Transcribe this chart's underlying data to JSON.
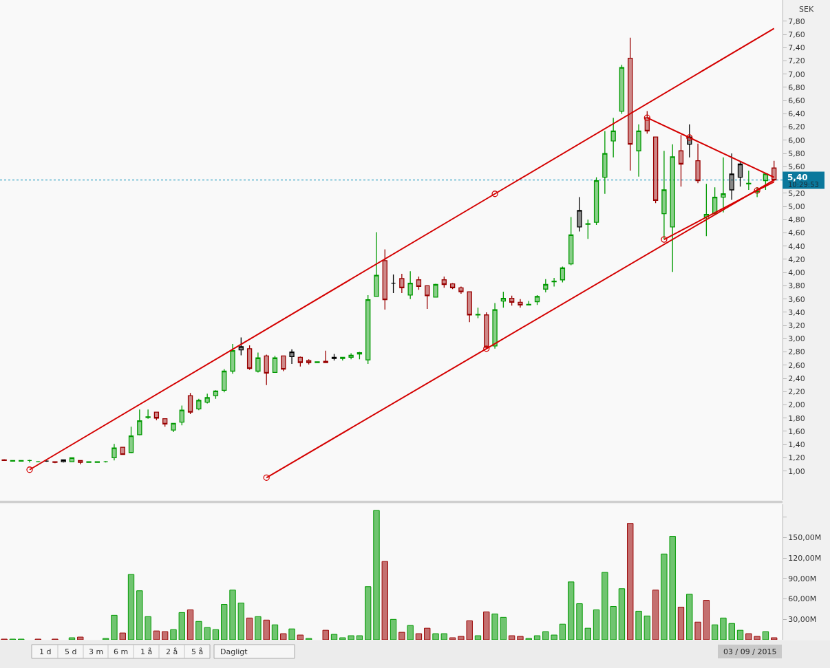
{
  "chart_data": [
    {
      "type": "candlestick",
      "ylabel": "SEK",
      "categories": [
        null,
        null,
        null,
        null,
        null,
        null,
        null,
        null,
        null,
        null,
        null,
        null,
        null,
        null,
        null,
        null,
        null,
        null,
        null,
        null,
        null,
        null,
        null,
        null,
        null,
        null,
        null,
        null,
        null,
        null,
        null,
        null,
        null,
        null,
        null,
        null,
        null,
        null,
        null,
        null,
        null,
        null,
        null,
        null,
        null,
        null,
        null,
        null,
        null,
        null,
        null,
        null,
        null,
        null,
        null,
        null,
        null,
        null,
        null,
        null,
        null,
        null,
        null,
        null,
        null,
        null,
        null,
        null,
        null,
        null,
        null,
        null,
        null,
        null,
        null,
        null,
        null,
        null,
        null,
        null,
        null,
        null,
        null,
        null,
        null,
        null,
        null,
        null,
        null,
        null,
        null,
        null
      ],
      "ohlc": [
        [
          1.17,
          1.18,
          1.16,
          1.16
        ],
        [
          1.15,
          1.16,
          1.15,
          1.16
        ],
        [
          1.15,
          1.16,
          1.15,
          1.16
        ],
        [
          1.16,
          1.17,
          1.13,
          1.16
        ],
        [
          1.14,
          1.15,
          1.14,
          1.14
        ],
        [
          1.15,
          1.16,
          1.14,
          1.15
        ],
        [
          1.14,
          1.14,
          1.12,
          1.13
        ],
        [
          1.14,
          1.17,
          1.13,
          1.17
        ],
        [
          1.14,
          1.2,
          1.14,
          1.2
        ],
        [
          1.16,
          1.16,
          1.1,
          1.13
        ],
        [
          1.13,
          1.14,
          1.13,
          1.14
        ],
        [
          1.13,
          1.14,
          1.13,
          1.14
        ],
        [
          1.14,
          1.15,
          1.13,
          1.14
        ],
        [
          1.2,
          1.41,
          1.16,
          1.35
        ],
        [
          1.36,
          1.36,
          1.25,
          1.25
        ],
        [
          1.28,
          1.67,
          1.27,
          1.53
        ],
        [
          1.55,
          1.93,
          1.54,
          1.76
        ],
        [
          1.81,
          1.93,
          1.79,
          1.82
        ],
        [
          1.89,
          1.89,
          1.77,
          1.8
        ],
        [
          1.79,
          1.79,
          1.67,
          1.71
        ],
        [
          1.62,
          1.72,
          1.59,
          1.72
        ],
        [
          1.74,
          1.99,
          1.69,
          1.92
        ],
        [
          2.14,
          2.18,
          1.86,
          1.89
        ],
        [
          1.94,
          2.09,
          1.92,
          2.07
        ],
        [
          2.04,
          2.17,
          2.02,
          2.11
        ],
        [
          2.14,
          2.22,
          2.09,
          2.21
        ],
        [
          2.22,
          2.54,
          2.19,
          2.51
        ],
        [
          2.51,
          2.92,
          2.47,
          2.82
        ],
        [
          2.83,
          3.02,
          2.75,
          2.88
        ],
        [
          2.85,
          2.9,
          2.53,
          2.55
        ],
        [
          2.51,
          2.79,
          2.49,
          2.71
        ],
        [
          2.74,
          2.76,
          2.3,
          2.48
        ],
        [
          2.49,
          2.74,
          2.49,
          2.71
        ],
        [
          2.74,
          2.74,
          2.51,
          2.54
        ],
        [
          2.73,
          2.84,
          2.62,
          2.8
        ],
        [
          2.72,
          2.73,
          2.58,
          2.64
        ],
        [
          2.67,
          2.69,
          2.61,
          2.64
        ],
        [
          2.64,
          2.65,
          2.64,
          2.65
        ],
        [
          2.66,
          2.82,
          2.64,
          2.64
        ],
        [
          2.7,
          2.77,
          2.67,
          2.72
        ],
        [
          2.7,
          2.72,
          2.67,
          2.72
        ],
        [
          2.72,
          2.78,
          2.69,
          2.75
        ],
        [
          2.77,
          2.8,
          2.69,
          2.79
        ],
        [
          2.68,
          3.66,
          2.62,
          3.59
        ],
        [
          3.64,
          4.61,
          3.64,
          3.96
        ],
        [
          4.18,
          4.35,
          3.44,
          3.59
        ],
        [
          3.84,
          3.97,
          3.69,
          3.84
        ],
        [
          3.91,
          3.98,
          3.69,
          3.77
        ],
        [
          3.66,
          4.02,
          3.6,
          3.84
        ],
        [
          3.89,
          3.94,
          3.74,
          3.79
        ],
        [
          3.8,
          3.8,
          3.45,
          3.65
        ],
        [
          3.63,
          3.83,
          3.63,
          3.82
        ],
        [
          3.89,
          3.94,
          3.77,
          3.82
        ],
        [
          3.83,
          3.84,
          3.75,
          3.77
        ],
        [
          3.77,
          3.79,
          3.68,
          3.71
        ],
        [
          3.71,
          3.71,
          3.25,
          3.36
        ],
        [
          3.36,
          3.47,
          3.31,
          3.37
        ],
        [
          3.36,
          3.4,
          2.86,
          2.87
        ],
        [
          2.89,
          3.54,
          2.85,
          3.44
        ],
        [
          3.57,
          3.71,
          3.47,
          3.61
        ],
        [
          3.61,
          3.65,
          3.5,
          3.55
        ],
        [
          3.55,
          3.6,
          3.47,
          3.51
        ],
        [
          3.51,
          3.57,
          3.51,
          3.52
        ],
        [
          3.56,
          3.66,
          3.51,
          3.64
        ],
        [
          3.75,
          3.9,
          3.7,
          3.82
        ],
        [
          3.86,
          3.92,
          3.79,
          3.87
        ],
        [
          3.89,
          4.09,
          3.85,
          4.07
        ],
        [
          4.13,
          4.84,
          4.11,
          4.57
        ],
        [
          4.69,
          5.14,
          4.62,
          4.94
        ],
        [
          4.73,
          4.8,
          4.51,
          4.74
        ],
        [
          4.76,
          5.44,
          4.72,
          5.39
        ],
        [
          5.44,
          6.14,
          5.19,
          5.8
        ],
        [
          5.99,
          6.34,
          5.74,
          6.14
        ],
        [
          6.44,
          7.14,
          6.4,
          7.1
        ],
        [
          7.24,
          7.55,
          5.54,
          5.94
        ],
        [
          5.84,
          6.24,
          5.45,
          6.14
        ],
        [
          6.34,
          6.44,
          6.1,
          6.14
        ],
        [
          6.05,
          6.05,
          5.05,
          5.09
        ],
        [
          4.89,
          5.84,
          4.5,
          5.25
        ],
        [
          4.69,
          5.94,
          4.01,
          5.75
        ],
        [
          5.84,
          6.08,
          5.3,
          5.64
        ],
        [
          5.94,
          6.24,
          5.74,
          6.05
        ],
        [
          5.69,
          5.95,
          5.35,
          5.39
        ],
        [
          4.84,
          5.34,
          4.55,
          4.88
        ],
        [
          4.89,
          5.29,
          4.87,
          5.14
        ],
        [
          5.14,
          5.74,
          4.91,
          5.19
        ],
        [
          5.25,
          5.8,
          5.1,
          5.49
        ],
        [
          5.44,
          5.67,
          5.3,
          5.64
        ],
        [
          5.34,
          5.54,
          5.25,
          5.35
        ],
        [
          5.22,
          5.29,
          5.14,
          5.23
        ],
        [
          5.39,
          5.5,
          5.25,
          5.49
        ],
        [
          5.58,
          5.69,
          5.38,
          5.4
        ]
      ],
      "colors": [
        "#990000",
        "#009900",
        "#009900",
        "#009900",
        "#009900",
        "#000000",
        "#990000",
        "#000000",
        "#009900",
        "#990000",
        "#009900",
        "#009900",
        "#009900",
        "#009900",
        "#990000",
        "#009900",
        "#009900",
        "#009900",
        "#990000",
        "#990000",
        "#009900",
        "#009900",
        "#990000",
        "#009900",
        "#009900",
        "#009900",
        "#009900",
        "#009900",
        "#000000",
        "#990000",
        "#009900",
        "#990000",
        "#009900",
        "#990000",
        "#000000",
        "#990000",
        "#990000",
        "#009900",
        "#990000",
        "#000000",
        "#009900",
        "#009900",
        "#009900",
        "#009900",
        "#009900",
        "#990000",
        "#000000",
        "#990000",
        "#009900",
        "#990000",
        "#990000",
        "#009900",
        "#990000",
        "#990000",
        "#990000",
        "#990000",
        "#009900",
        "#990000",
        "#009900",
        "#009900",
        "#990000",
        "#990000",
        "#009900",
        "#009900",
        "#009900",
        "#009900",
        "#009900",
        "#009900",
        "#000000",
        "#009900",
        "#009900",
        "#009900",
        "#009900",
        "#009900",
        "#990000",
        "#009900",
        "#990000",
        "#990000",
        "#009900",
        "#009900",
        "#990000",
        "#000000",
        "#990000",
        "#009900",
        "#009900",
        "#009900",
        "#000000",
        "#000000",
        "#009900",
        "#009900",
        "#009900",
        "#990000"
      ],
      "series": [
        {
          "type": "line",
          "color": "#d40000",
          "marker": "none",
          "line_style": "solid",
          "values": [
            null,
            null,
            null,
            1.02,
            null,
            null,
            null,
            null,
            null,
            null,
            null,
            null,
            null,
            null,
            null,
            null,
            null,
            null,
            null,
            null,
            null,
            null,
            null,
            null,
            null,
            null,
            null,
            null,
            null,
            null,
            null,
            null,
            null,
            null,
            null,
            null,
            null,
            null,
            null,
            null,
            null,
            null,
            null,
            null,
            null,
            null,
            null,
            null,
            null,
            null,
            null,
            null,
            null,
            null,
            null,
            null,
            null,
            null,
            5.19,
            null,
            null,
            null,
            null,
            null,
            null,
            null,
            null,
            null,
            null,
            null,
            null,
            null,
            null,
            null,
            null,
            null,
            null,
            null,
            null,
            null,
            null,
            null,
            null,
            null,
            null,
            null,
            null,
            null,
            null,
            null,
            null,
            7.69
          ]
        },
        {
          "type": "line",
          "color": "#d40000",
          "marker": "none",
          "line_style": "solid",
          "values": [
            null,
            null,
            null,
            null,
            null,
            null,
            null,
            null,
            null,
            null,
            null,
            null,
            null,
            null,
            null,
            null,
            null,
            null,
            null,
            null,
            null,
            null,
            null,
            null,
            null,
            null,
            null,
            null,
            null,
            null,
            null,
            0.9,
            null,
            null,
            null,
            null,
            null,
            null,
            null,
            null,
            null,
            null,
            null,
            null,
            null,
            null,
            null,
            null,
            null,
            null,
            null,
            null,
            null,
            null,
            null,
            null,
            null,
            2.85,
            null,
            null,
            null,
            null,
            null,
            null,
            null,
            null,
            null,
            null,
            null,
            null,
            null,
            null,
            null,
            null,
            null,
            null,
            null,
            null,
            null,
            null,
            null,
            null,
            null,
            null,
            null,
            null,
            null,
            null,
            null,
            null,
            null,
            5.4
          ]
        },
        {
          "type": "line",
          "color": "#d40000",
          "marker": "none",
          "line_style": "solid",
          "values": [
            null,
            null,
            null,
            null,
            null,
            null,
            null,
            null,
            null,
            null,
            null,
            null,
            null,
            null,
            null,
            null,
            null,
            null,
            null,
            null,
            null,
            null,
            null,
            null,
            null,
            null,
            null,
            null,
            null,
            null,
            null,
            null,
            null,
            null,
            null,
            null,
            null,
            null,
            null,
            null,
            null,
            null,
            null,
            null,
            null,
            null,
            null,
            null,
            null,
            null,
            null,
            null,
            null,
            null,
            null,
            null,
            null,
            null,
            null,
            null,
            null,
            null,
            null,
            null,
            null,
            null,
            null,
            null,
            null,
            null,
            null,
            null,
            null,
            null,
            null,
            null,
            6.34,
            null,
            null,
            null,
            null,
            6.04,
            null,
            null,
            null,
            null,
            null,
            null,
            null,
            null,
            null,
            5.44
          ]
        },
        {
          "type": "line",
          "color": "#d40000",
          "marker": "none",
          "line_style": "solid",
          "values": [
            null,
            null,
            null,
            null,
            null,
            null,
            null,
            null,
            null,
            null,
            null,
            null,
            null,
            null,
            null,
            null,
            null,
            null,
            null,
            null,
            null,
            null,
            null,
            null,
            null,
            null,
            null,
            null,
            null,
            null,
            null,
            null,
            null,
            null,
            null,
            null,
            null,
            null,
            null,
            null,
            null,
            null,
            null,
            null,
            null,
            null,
            null,
            null,
            null,
            null,
            null,
            null,
            null,
            null,
            null,
            null,
            null,
            null,
            null,
            null,
            null,
            null,
            null,
            null,
            null,
            null,
            null,
            null,
            null,
            null,
            null,
            null,
            null,
            null,
            null,
            null,
            null,
            null,
            4.5,
            null,
            null,
            null,
            null,
            null,
            null,
            null,
            null,
            null,
            null,
            5.24,
            null,
            5.37
          ]
        },
        {
          "type": "scatter",
          "color": "#d40000",
          "marker": "circle",
          "values": [
            null,
            null,
            null,
            1.02,
            null,
            null,
            null,
            null,
            null,
            null,
            null,
            null,
            null,
            null,
            null,
            null,
            null,
            null,
            null,
            null,
            null,
            null,
            null,
            null,
            null,
            null,
            null,
            null,
            null,
            null,
            null,
            0.9,
            null,
            null,
            null,
            null,
            null,
            null,
            null,
            null,
            null,
            null,
            null,
            null,
            null,
            null,
            null,
            null,
            null,
            null,
            null,
            null,
            null,
            null,
            null,
            null,
            null,
            2.85,
            5.19,
            null,
            null,
            null,
            null,
            null,
            null,
            null,
            null,
            null,
            null,
            null,
            null,
            null,
            null,
            null,
            null,
            null,
            6.34,
            null,
            4.5,
            null,
            null,
            6.04,
            null,
            null,
            null,
            null,
            null,
            null,
            null,
            5.24,
            null,
            null
          ]
        }
      ],
      "ylim": [
        0.56,
        8.12
      ],
      "yticks": [
        {
          "value": 1.0,
          "label": "1,00"
        },
        {
          "value": 1.2,
          "label": "1,20"
        },
        {
          "value": 1.4,
          "label": "1,40"
        },
        {
          "value": 1.6,
          "label": "1,60"
        },
        {
          "value": 1.8,
          "label": "1,80"
        },
        {
          "value": 2.0,
          "label": "2,00"
        },
        {
          "value": 2.2,
          "label": "2,20"
        },
        {
          "value": 2.4,
          "label": "2,40"
        },
        {
          "value": 2.6,
          "label": "2,60"
        },
        {
          "value": 2.8,
          "label": "2,80"
        },
        {
          "value": 3.0,
          "label": "3,00"
        },
        {
          "value": 3.2,
          "label": "3,20"
        },
        {
          "value": 3.4,
          "label": "3,40"
        },
        {
          "value": 3.6,
          "label": "3,60"
        },
        {
          "value": 3.8,
          "label": "3,80"
        },
        {
          "value": 4.0,
          "label": "4,00"
        },
        {
          "value": 4.2,
          "label": "4,20"
        },
        {
          "value": 4.4,
          "label": "4,40"
        },
        {
          "value": 4.6,
          "label": "4,60"
        },
        {
          "value": 4.8,
          "label": "4,80"
        },
        {
          "value": 5.0,
          "label": "5,00"
        },
        {
          "value": 5.2,
          "label": "5,20"
        },
        {
          "value": 5.4,
          "label": null
        },
        {
          "value": 5.6,
          "label": "5,60"
        },
        {
          "value": 5.8,
          "label": "5,80"
        },
        {
          "value": 6.0,
          "label": "6,00"
        },
        {
          "value": 6.2,
          "label": "6,20"
        },
        {
          "value": 6.4,
          "label": "6,40"
        },
        {
          "value": 6.6,
          "label": "6,60"
        },
        {
          "value": 6.8,
          "label": "6,80"
        },
        {
          "value": 7.0,
          "label": "7,00"
        },
        {
          "value": 7.2,
          "label": "7,20"
        },
        {
          "value": 7.4,
          "label": "7,40"
        },
        {
          "value": 7.6,
          "label": "7,60"
        },
        {
          "value": 7.8,
          "label": "7,80"
        }
      ],
      "tick_labels": "y",
      "ref_lines": [
        {
          "axis": "y",
          "value": 5.4,
          "label": "5,40",
          "color": "#3aa6c6",
          "line_style": "dotted"
        }
      ],
      "annotations": [
        "10:29:53"
      ]
    },
    {
      "type": "bar",
      "categories": [
        null,
        null,
        null,
        null,
        null,
        null,
        null,
        null,
        null,
        null,
        null,
        null,
        null,
        null,
        null,
        null,
        null,
        null,
        null,
        null,
        null,
        null,
        null,
        null,
        null,
        null,
        null,
        null,
        null,
        null,
        null,
        null,
        null,
        null,
        null,
        null,
        null,
        null,
        null,
        null,
        null,
        null,
        null,
        null,
        null,
        null,
        null,
        null,
        null,
        null,
        null,
        null,
        null,
        null,
        null,
        null,
        null,
        null,
        null,
        null,
        null,
        null,
        null,
        null,
        null,
        null,
        null,
        null,
        null,
        null,
        null,
        null,
        null,
        null,
        null,
        null,
        null,
        null,
        null,
        null,
        null,
        null,
        null,
        null,
        null,
        null,
        null,
        null,
        null,
        null,
        null,
        null
      ],
      "values": [
        1,
        1,
        1,
        null,
        1,
        null,
        1,
        null,
        3,
        4,
        null,
        null,
        2,
        36,
        10,
        96,
        72,
        34,
        13,
        12,
        15,
        40,
        44,
        27,
        18,
        15,
        52,
        73,
        54,
        32,
        34,
        29,
        22,
        9,
        16,
        7,
        2,
        null,
        14,
        8,
        3,
        6,
        6,
        78,
        190,
        115,
        30,
        11,
        21,
        9,
        17,
        9,
        9,
        3,
        5,
        28,
        6,
        41,
        38,
        33,
        6,
        5,
        2,
        6,
        12,
        7,
        23,
        85,
        53,
        17,
        44,
        99,
        49,
        75,
        171,
        42,
        35,
        73,
        126,
        152,
        48,
        67,
        26,
        58,
        22,
        32,
        24,
        14,
        9,
        5,
        12,
        3
      ],
      "colors": [
        "#990000",
        "#009900",
        "#009900",
        "#009900",
        "#990000",
        "#009900",
        "#990000",
        "#009900",
        "#009900",
        "#990000",
        "#009900",
        "#009900",
        "#009900",
        "#009900",
        "#990000",
        "#009900",
        "#009900",
        "#009900",
        "#990000",
        "#990000",
        "#009900",
        "#009900",
        "#990000",
        "#009900",
        "#009900",
        "#009900",
        "#009900",
        "#009900",
        "#009900",
        "#990000",
        "#009900",
        "#990000",
        "#009900",
        "#990000",
        "#009900",
        "#990000",
        "#009900",
        "#009900",
        "#990000",
        "#009900",
        "#009900",
        "#009900",
        "#009900",
        "#009900",
        "#009900",
        "#990000",
        "#009900",
        "#990000",
        "#009900",
        "#990000",
        "#990000",
        "#009900",
        "#009900",
        "#990000",
        "#990000",
        "#990000",
        "#009900",
        "#990000",
        "#009900",
        "#009900",
        "#990000",
        "#990000",
        "#009900",
        "#009900",
        "#009900",
        "#009900",
        "#009900",
        "#009900",
        "#009900",
        "#009900",
        "#009900",
        "#009900",
        "#009900",
        "#009900",
        "#990000",
        "#009900",
        "#009900",
        "#990000",
        "#009900",
        "#009900",
        "#990000",
        "#009900",
        "#990000",
        "#990000",
        "#009900",
        "#009900",
        "#009900",
        "#009900",
        "#990000",
        "#990000",
        "#009900",
        "#990000"
      ],
      "ylim": [
        0,
        199
      ],
      "yticks": [
        {
          "value": 30,
          "label": "30,00M"
        },
        {
          "value": 60,
          "label": "60,00M"
        },
        {
          "value": 90,
          "label": "90,00M"
        },
        {
          "value": 120,
          "label": "120,00M"
        },
        {
          "value": 150,
          "label": "150,00M"
        },
        {
          "value": 180,
          "label": null
        }
      ],
      "tick_labels": "y",
      "annotations": [
        "1 d",
        "5 d",
        "3 m",
        "6 m",
        "1 å",
        "2 å",
        "5 å",
        "Dagligt",
        "03 / 09 / 2015"
      ]
    }
  ]
}
